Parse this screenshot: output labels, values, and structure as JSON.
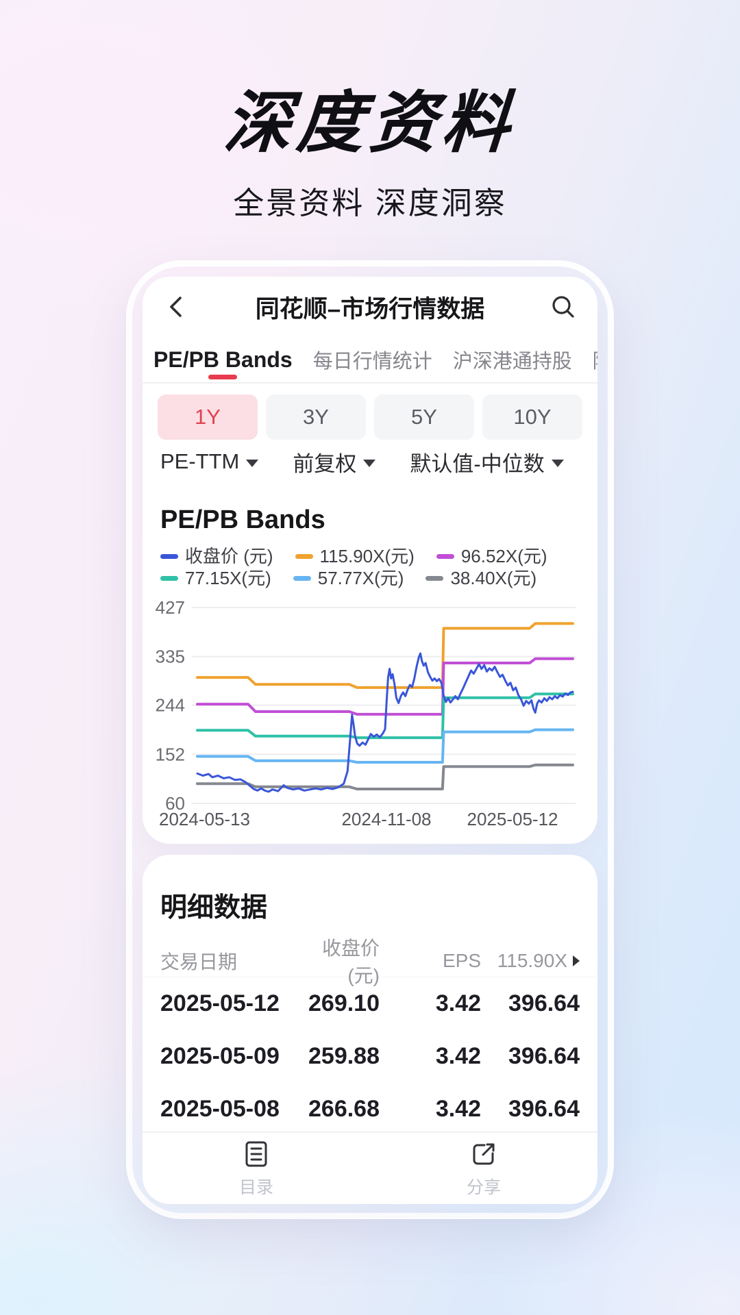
{
  "hero": {
    "title": "深度资料",
    "subtitle": "全景资料 深度洞察"
  },
  "app": {
    "nav_title": "同花顺–市场行情数据",
    "tabs": [
      {
        "label": "PE/PB Bands",
        "active": true
      },
      {
        "label": "每日行情统计",
        "active": false
      },
      {
        "label": "沪深港通持股",
        "active": false
      },
      {
        "label": "陆股通持股",
        "active": false
      }
    ],
    "ranges": [
      {
        "label": "1Y",
        "active": true
      },
      {
        "label": "3Y",
        "active": false
      },
      {
        "label": "5Y",
        "active": false
      },
      {
        "label": "10Y",
        "active": false
      }
    ],
    "filters": [
      "PE-TTM",
      "前复权",
      "默认值-中位数"
    ]
  },
  "chart_data": {
    "type": "line",
    "title": "PE/PB Bands",
    "ylim": [
      60,
      427
    ],
    "y_ticks": [
      427,
      335,
      244,
      152,
      60
    ],
    "x_labels": [
      "2024-05-13",
      "2024-11-08",
      "2025-05-12"
    ],
    "grid": "horizontal",
    "legend_position": "top",
    "series": [
      {
        "name": "收盘价 (元)",
        "color": "#3a56d8",
        "role": "price",
        "points": [
          [
            0,
            116
          ],
          [
            1.5,
            112
          ],
          [
            3,
            115
          ],
          [
            4,
            109
          ],
          [
            5.5,
            112
          ],
          [
            7,
            107
          ],
          [
            8.5,
            109
          ],
          [
            10,
            104
          ],
          [
            11.5,
            105
          ],
          [
            13,
            99
          ],
          [
            14,
            93
          ],
          [
            15,
            87
          ],
          [
            16,
            84
          ],
          [
            17,
            88
          ],
          [
            18,
            84
          ],
          [
            19,
            82
          ],
          [
            20,
            86
          ],
          [
            21.5,
            83
          ],
          [
            23,
            94
          ],
          [
            24,
            89
          ],
          [
            25.5,
            86
          ],
          [
            27,
            88
          ],
          [
            28.5,
            84
          ],
          [
            30,
            86
          ],
          [
            31.5,
            88
          ],
          [
            33,
            86
          ],
          [
            34.5,
            89
          ],
          [
            36,
            87
          ],
          [
            37.5,
            90
          ],
          [
            39,
            97
          ],
          [
            40,
            120
          ],
          [
            40.8,
            190
          ],
          [
            41.2,
            226
          ],
          [
            41.6,
            208
          ],
          [
            42,
            186
          ],
          [
            42.6,
            172
          ],
          [
            43.2,
            168
          ],
          [
            44,
            174
          ],
          [
            44.8,
            170
          ],
          [
            45.5,
            180
          ],
          [
            46.2,
            190
          ],
          [
            47,
            185
          ],
          [
            47.8,
            189
          ],
          [
            48.6,
            184
          ],
          [
            49.4,
            191
          ],
          [
            50,
            199
          ],
          [
            50.4,
            250
          ],
          [
            50.8,
            296
          ],
          [
            51.2,
            312
          ],
          [
            51.6,
            294
          ],
          [
            52,
            302
          ],
          [
            52.5,
            284
          ],
          [
            53,
            258
          ],
          [
            53.6,
            248
          ],
          [
            54.2,
            261
          ],
          [
            54.8,
            268
          ],
          [
            55.4,
            261
          ],
          [
            56,
            273
          ],
          [
            56.6,
            282
          ],
          [
            57.2,
            278
          ],
          [
            57.8,
            294
          ],
          [
            58.4,
            316
          ],
          [
            59,
            334
          ],
          [
            59.4,
            341
          ],
          [
            59.8,
            327
          ],
          [
            60.3,
            318
          ],
          [
            60.8,
            323
          ],
          [
            61.4,
            306
          ],
          [
            62,
            297
          ],
          [
            62.6,
            290
          ],
          [
            63.2,
            294
          ],
          [
            63.8,
            289
          ],
          [
            64.4,
            293
          ],
          [
            65,
            286
          ],
          [
            65.6,
            262
          ],
          [
            66.2,
            250
          ],
          [
            66.8,
            257
          ],
          [
            67.4,
            249
          ],
          [
            68,
            254
          ],
          [
            68.7,
            261
          ],
          [
            69.4,
            255
          ],
          [
            70.1,
            266
          ],
          [
            70.8,
            276
          ],
          [
            71.5,
            287
          ],
          [
            72.2,
            298
          ],
          [
            72.9,
            309
          ],
          [
            73.6,
            303
          ],
          [
            74.3,
            312
          ],
          [
            75,
            321
          ],
          [
            75.7,
            312
          ],
          [
            76.4,
            319
          ],
          [
            77.1,
            307
          ],
          [
            77.8,
            313
          ],
          [
            78.5,
            309
          ],
          [
            79.2,
            316
          ],
          [
            79.9,
            306
          ],
          [
            80.6,
            297
          ],
          [
            81.3,
            301
          ],
          [
            82,
            290
          ],
          [
            82.7,
            281
          ],
          [
            83.4,
            286
          ],
          [
            84.1,
            272
          ],
          [
            84.8,
            277
          ],
          [
            85.5,
            263
          ],
          [
            86.2,
            255
          ],
          [
            86.9,
            243
          ],
          [
            87.6,
            252
          ],
          [
            88.3,
            247
          ],
          [
            89,
            253
          ],
          [
            89.5,
            238
          ],
          [
            90,
            230
          ],
          [
            90.5,
            247
          ],
          [
            91,
            253
          ],
          [
            91.7,
            249
          ],
          [
            92.4,
            257
          ],
          [
            93.1,
            252
          ],
          [
            93.8,
            259
          ],
          [
            94.5,
            255
          ],
          [
            95.2,
            261
          ],
          [
            95.9,
            257
          ],
          [
            96.6,
            263
          ],
          [
            97.3,
            260
          ],
          [
            98,
            266
          ],
          [
            98.7,
            263
          ],
          [
            99.4,
            268
          ],
          [
            100,
            269
          ]
        ]
      },
      {
        "name": "115.90X(元)",
        "color": "#f0a22e",
        "role": "band",
        "points": [
          [
            0,
            296
          ],
          [
            13.5,
            296
          ],
          [
            15.5,
            283
          ],
          [
            40.5,
            283
          ],
          [
            42.5,
            277
          ],
          [
            65.3,
            277
          ],
          [
            65.6,
            388
          ],
          [
            88.5,
            388
          ],
          [
            90,
            397
          ],
          [
            100,
            397
          ]
        ]
      },
      {
        "name": "96.52X(元)",
        "color": "#c14fd6",
        "role": "band",
        "points": [
          [
            0,
            246
          ],
          [
            13.5,
            246
          ],
          [
            15.5,
            232
          ],
          [
            40.5,
            232
          ],
          [
            42.5,
            227
          ],
          [
            65.3,
            227
          ],
          [
            65.6,
            323
          ],
          [
            88.5,
            323
          ],
          [
            90,
            331
          ],
          [
            100,
            331
          ]
        ]
      },
      {
        "name": "77.15X(元)",
        "color": "#2fc1a7",
        "role": "band",
        "points": [
          [
            0,
            197
          ],
          [
            13.5,
            197
          ],
          [
            15.5,
            186
          ],
          [
            40.5,
            186
          ],
          [
            42.5,
            183
          ],
          [
            65.3,
            183
          ],
          [
            65.6,
            258
          ],
          [
            88.5,
            258
          ],
          [
            90,
            265
          ],
          [
            100,
            265
          ]
        ]
      },
      {
        "name": "57.77X(元)",
        "color": "#66b5f2",
        "role": "band",
        "points": [
          [
            0,
            148
          ],
          [
            13.5,
            148
          ],
          [
            15.5,
            140
          ],
          [
            40.5,
            140
          ],
          [
            42.5,
            137
          ],
          [
            65.3,
            137
          ],
          [
            65.6,
            194
          ],
          [
            88.5,
            194
          ],
          [
            90,
            198
          ],
          [
            100,
            198
          ]
        ]
      },
      {
        "name": "38.40X(元)",
        "color": "#85888f",
        "role": "band",
        "points": [
          [
            0,
            97
          ],
          [
            13.5,
            97
          ],
          [
            15.5,
            91
          ],
          [
            40.5,
            91
          ],
          [
            42.5,
            87
          ],
          [
            65.3,
            87
          ],
          [
            65.6,
            129
          ],
          [
            88.5,
            129
          ],
          [
            90,
            132
          ],
          [
            100,
            132
          ]
        ]
      }
    ]
  },
  "detail": {
    "title": "明细数据",
    "columns": [
      "交易日期",
      "收盘价 (元)",
      "EPS",
      "115.90X"
    ],
    "rows": [
      [
        "2025-05-12",
        "269.10",
        "3.42",
        "396.64"
      ],
      [
        "2025-05-09",
        "259.88",
        "3.42",
        "396.64"
      ],
      [
        "2025-05-08",
        "266.68",
        "3.42",
        "396.64"
      ]
    ]
  },
  "footer": {
    "toc_label": "目录",
    "share_label": "分享"
  },
  "colors": {
    "accent_red": "#e83c4e",
    "active_range_bg": "#fbdfe4",
    "active_range_text": "#e0434f",
    "grid_line": "#ededf0",
    "axis_text": "#6b6b72"
  }
}
